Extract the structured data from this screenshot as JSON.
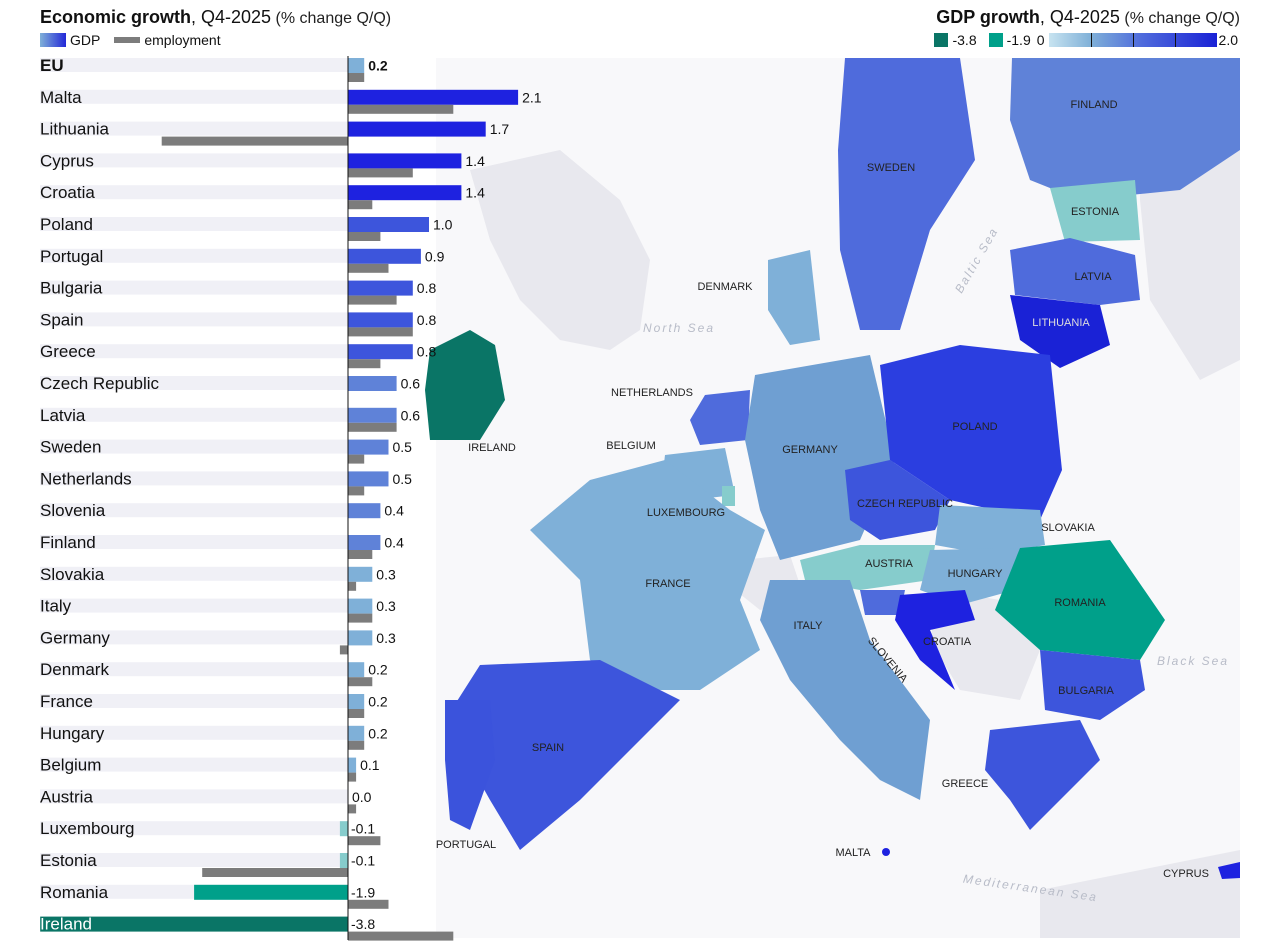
{
  "left_header": {
    "title": "Economic growth",
    "subtitle": ", Q4-2025",
    "unit": " (% change Q/Q)"
  },
  "right_header": {
    "title": "GDP growth",
    "subtitle": ", Q4-2025",
    "unit": " (% change Q/Q)"
  },
  "legend": {
    "gdp": "GDP",
    "employment": "employment"
  },
  "map_legend": {
    "neg1": "-3.8",
    "neg2": "-1.9",
    "zero": "0",
    "max": "2.0",
    "colors": {
      "neg1": "#0a7566",
      "neg2": "#00a08a"
    }
  },
  "colors": {
    "gdp_high": "#1e22e0",
    "gdp_mid": "#3d55dc",
    "gdp_low": "#5f82d8",
    "gdp_vlow": "#7fb0d8",
    "employment": "#7c7c7c",
    "row_band": "#f0f0f6",
    "map_sea": "#f8f8fa",
    "map_land_other": "#e6e6ee"
  },
  "chart_data": {
    "type": "bar",
    "title": "Economic growth",
    "subtitle": "Q4-2025 (% change Q/Q)",
    "categories": [
      "EU",
      "Malta",
      "Lithuania",
      "Cyprus",
      "Croatia",
      "Poland",
      "Portugal",
      "Bulgaria",
      "Spain",
      "Greece",
      "Czech Republic",
      "Latvia",
      "Sweden",
      "Netherlands",
      "Slovenia",
      "Finland",
      "Slovakia",
      "Italy",
      "Germany",
      "Denmark",
      "France",
      "Hungary",
      "Belgium",
      "Austria",
      "Luxembourg",
      "Estonia",
      "Romania",
      "Ireland"
    ],
    "value_labels": [
      "0.2",
      "2.1",
      "1.7",
      "1.4",
      "1.4",
      "1.0",
      "0.9",
      "0.8",
      "0.8",
      "0.8",
      "0.6",
      "0.6",
      "0.5",
      "0.5",
      "0.4",
      "0.4",
      "0.3",
      "0.3",
      "0.3",
      "0.2",
      "0.2",
      "0.2",
      "0.1",
      "0.0",
      "-0.1",
      "-0.1",
      "-1.9",
      "-3.8"
    ],
    "series": [
      {
        "name": "GDP",
        "values": [
          0.2,
          2.1,
          1.7,
          1.4,
          1.4,
          1.0,
          0.9,
          0.8,
          0.8,
          0.8,
          0.6,
          0.6,
          0.5,
          0.5,
          0.4,
          0.4,
          0.3,
          0.3,
          0.3,
          0.2,
          0.2,
          0.2,
          0.1,
          0.0,
          -0.1,
          -0.1,
          -1.9,
          -3.8
        ]
      },
      {
        "name": "employment",
        "values": [
          0.2,
          1.3,
          -2.3,
          0.8,
          0.3,
          0.4,
          0.5,
          0.6,
          0.8,
          0.4,
          0.0,
          0.6,
          0.2,
          0.2,
          0.0,
          0.3,
          0.1,
          0.3,
          -0.1,
          0.3,
          0.2,
          0.2,
          0.1,
          0.1,
          0.4,
          -1.8,
          0.5,
          1.3
        ]
      }
    ],
    "xlim": [
      -4.3,
      2.3
    ]
  },
  "map": {
    "title": "GDP growth",
    "sea_labels": [
      "North Sea",
      "Baltic Sea",
      "Black Sea",
      "Mediterranean Sea"
    ],
    "countries": [
      {
        "name": "FINLAND",
        "value": 0.4
      },
      {
        "name": "SWEDEN",
        "value": 0.5
      },
      {
        "name": "ESTONIA",
        "value": -0.1
      },
      {
        "name": "LATVIA",
        "value": 0.6
      },
      {
        "name": "LITHUANIA",
        "value": 1.7
      },
      {
        "name": "DENMARK",
        "value": 0.2
      },
      {
        "name": "IRELAND",
        "value": -3.8
      },
      {
        "name": "NETHERLANDS",
        "value": 0.5
      },
      {
        "name": "BELGIUM",
        "value": 0.1
      },
      {
        "name": "LUXEMBOURG",
        "value": -0.1
      },
      {
        "name": "GERMANY",
        "value": 0.3
      },
      {
        "name": "POLAND",
        "value": 1.0
      },
      {
        "name": "CZECH REPUBLIC",
        "value": 0.6
      },
      {
        "name": "SLOVAKIA",
        "value": 0.3
      },
      {
        "name": "AUSTRIA",
        "value": 0.0
      },
      {
        "name": "HUNGARY",
        "value": 0.2
      },
      {
        "name": "ROMANIA",
        "value": -1.9
      },
      {
        "name": "FRANCE",
        "value": 0.2
      },
      {
        "name": "ITALY",
        "value": 0.3
      },
      {
        "name": "SLOVENIA",
        "value": 0.4
      },
      {
        "name": "CROATIA",
        "value": 1.4
      },
      {
        "name": "BULGARIA",
        "value": 0.8
      },
      {
        "name": "SPAIN",
        "value": 0.8
      },
      {
        "name": "PORTUGAL",
        "value": 0.9
      },
      {
        "name": "GREECE",
        "value": 0.8
      },
      {
        "name": "MALTA",
        "value": 2.1
      },
      {
        "name": "CYPRUS",
        "value": 1.4
      }
    ]
  }
}
